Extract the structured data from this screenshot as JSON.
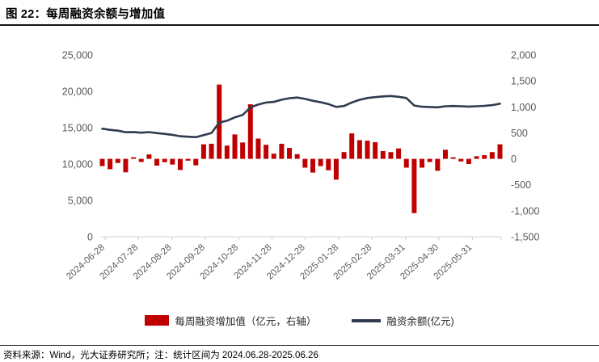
{
  "title": "图 22：每周融资余额与增加值",
  "footer": "资料来源：Wind，光大证券研究所；注：统计区间为 2024.06.28-2025.06.26",
  "legend": {
    "bar_label": "每周融资增加值（亿元，右轴）",
    "line_label": "融资余额(亿元)"
  },
  "colors": {
    "bar": "#C00000",
    "line": "#2F3B4E",
    "axis_text": "#595959",
    "axis_line": "#D9D9D9",
    "title_text": "#000000"
  },
  "chart_data": {
    "type": "bar+line",
    "title": "图 22：每周融资余额与增加值",
    "x_tick_labels": [
      "2024-06-28",
      "2024-07-28",
      "2024-08-28",
      "2024-09-28",
      "2024-10-28",
      "2024-11-28",
      "2024-12-28",
      "2025-01-28",
      "2025-02-28",
      "2025-03-31",
      "2025-04-30",
      "2025-05-31"
    ],
    "left_axis": {
      "label": "融资余额(亿元)",
      "min": 0,
      "max": 25000,
      "step": 5000,
      "tick_values": [
        0,
        5000,
        10000,
        15000,
        20000,
        25000
      ]
    },
    "right_axis": {
      "label": "每周融资增加值（亿元，右轴）",
      "min": -1500,
      "max": 2000,
      "step": 500,
      "tick_values": [
        -1500,
        -1000,
        -500,
        0,
        500,
        1000,
        1500,
        2000
      ]
    },
    "grid": "off",
    "legend_position": "bottom",
    "dates": [
      "2024-06-28",
      "2024-07-05",
      "2024-07-12",
      "2024-07-19",
      "2024-07-26",
      "2024-08-02",
      "2024-08-09",
      "2024-08-16",
      "2024-08-23",
      "2024-08-30",
      "2024-09-06",
      "2024-09-13",
      "2024-09-20",
      "2024-09-27",
      "2024-09-30",
      "2024-10-11",
      "2024-10-18",
      "2024-10-25",
      "2024-11-01",
      "2024-11-08",
      "2024-11-15",
      "2024-11-22",
      "2024-11-29",
      "2024-12-06",
      "2024-12-13",
      "2024-12-20",
      "2024-12-27",
      "2025-01-03",
      "2025-01-10",
      "2025-01-17",
      "2025-01-24",
      "2025-02-07",
      "2025-02-14",
      "2025-02-21",
      "2025-02-28",
      "2025-03-07",
      "2025-03-14",
      "2025-03-21",
      "2025-03-28",
      "2025-04-03",
      "2025-04-11",
      "2025-04-18",
      "2025-04-25",
      "2025-04-30",
      "2025-05-09",
      "2025-05-16",
      "2025-05-23",
      "2025-05-30",
      "2025-06-06",
      "2025-06-13",
      "2025-06-20",
      "2025-06-26"
    ],
    "series": [
      {
        "name": "每周融资增加值（亿元，右轴）",
        "type": "bar",
        "axis": "right",
        "values": [
          -140,
          -200,
          -80,
          -260,
          30,
          -60,
          85,
          -130,
          -65,
          -110,
          -215,
          -35,
          -125,
          280,
          290,
          1430,
          255,
          470,
          315,
          1050,
          390,
          270,
          100,
          290,
          210,
          90,
          -170,
          -265,
          -140,
          -220,
          -400,
          130,
          490,
          360,
          350,
          320,
          150,
          130,
          200,
          -170,
          -1045,
          -170,
          -60,
          -230,
          175,
          30,
          -50,
          -100,
          50,
          70,
          130,
          280
        ]
      },
      {
        "name": "融资余额(亿元)",
        "type": "line",
        "axis": "left",
        "values": [
          14850,
          14700,
          14590,
          14380,
          14400,
          14310,
          14390,
          14260,
          14150,
          14010,
          13820,
          13760,
          13700,
          13980,
          14270,
          15700,
          15950,
          16420,
          16740,
          17790,
          18180,
          18450,
          18550,
          18840,
          19050,
          19140,
          18960,
          18700,
          18500,
          18250,
          17850,
          17980,
          18470,
          18830,
          19080,
          19200,
          19300,
          19350,
          19250,
          19080,
          18050,
          17880,
          17840,
          17800,
          17950,
          17980,
          17950,
          17900,
          17950,
          18000,
          18100,
          18300
        ]
      }
    ]
  }
}
